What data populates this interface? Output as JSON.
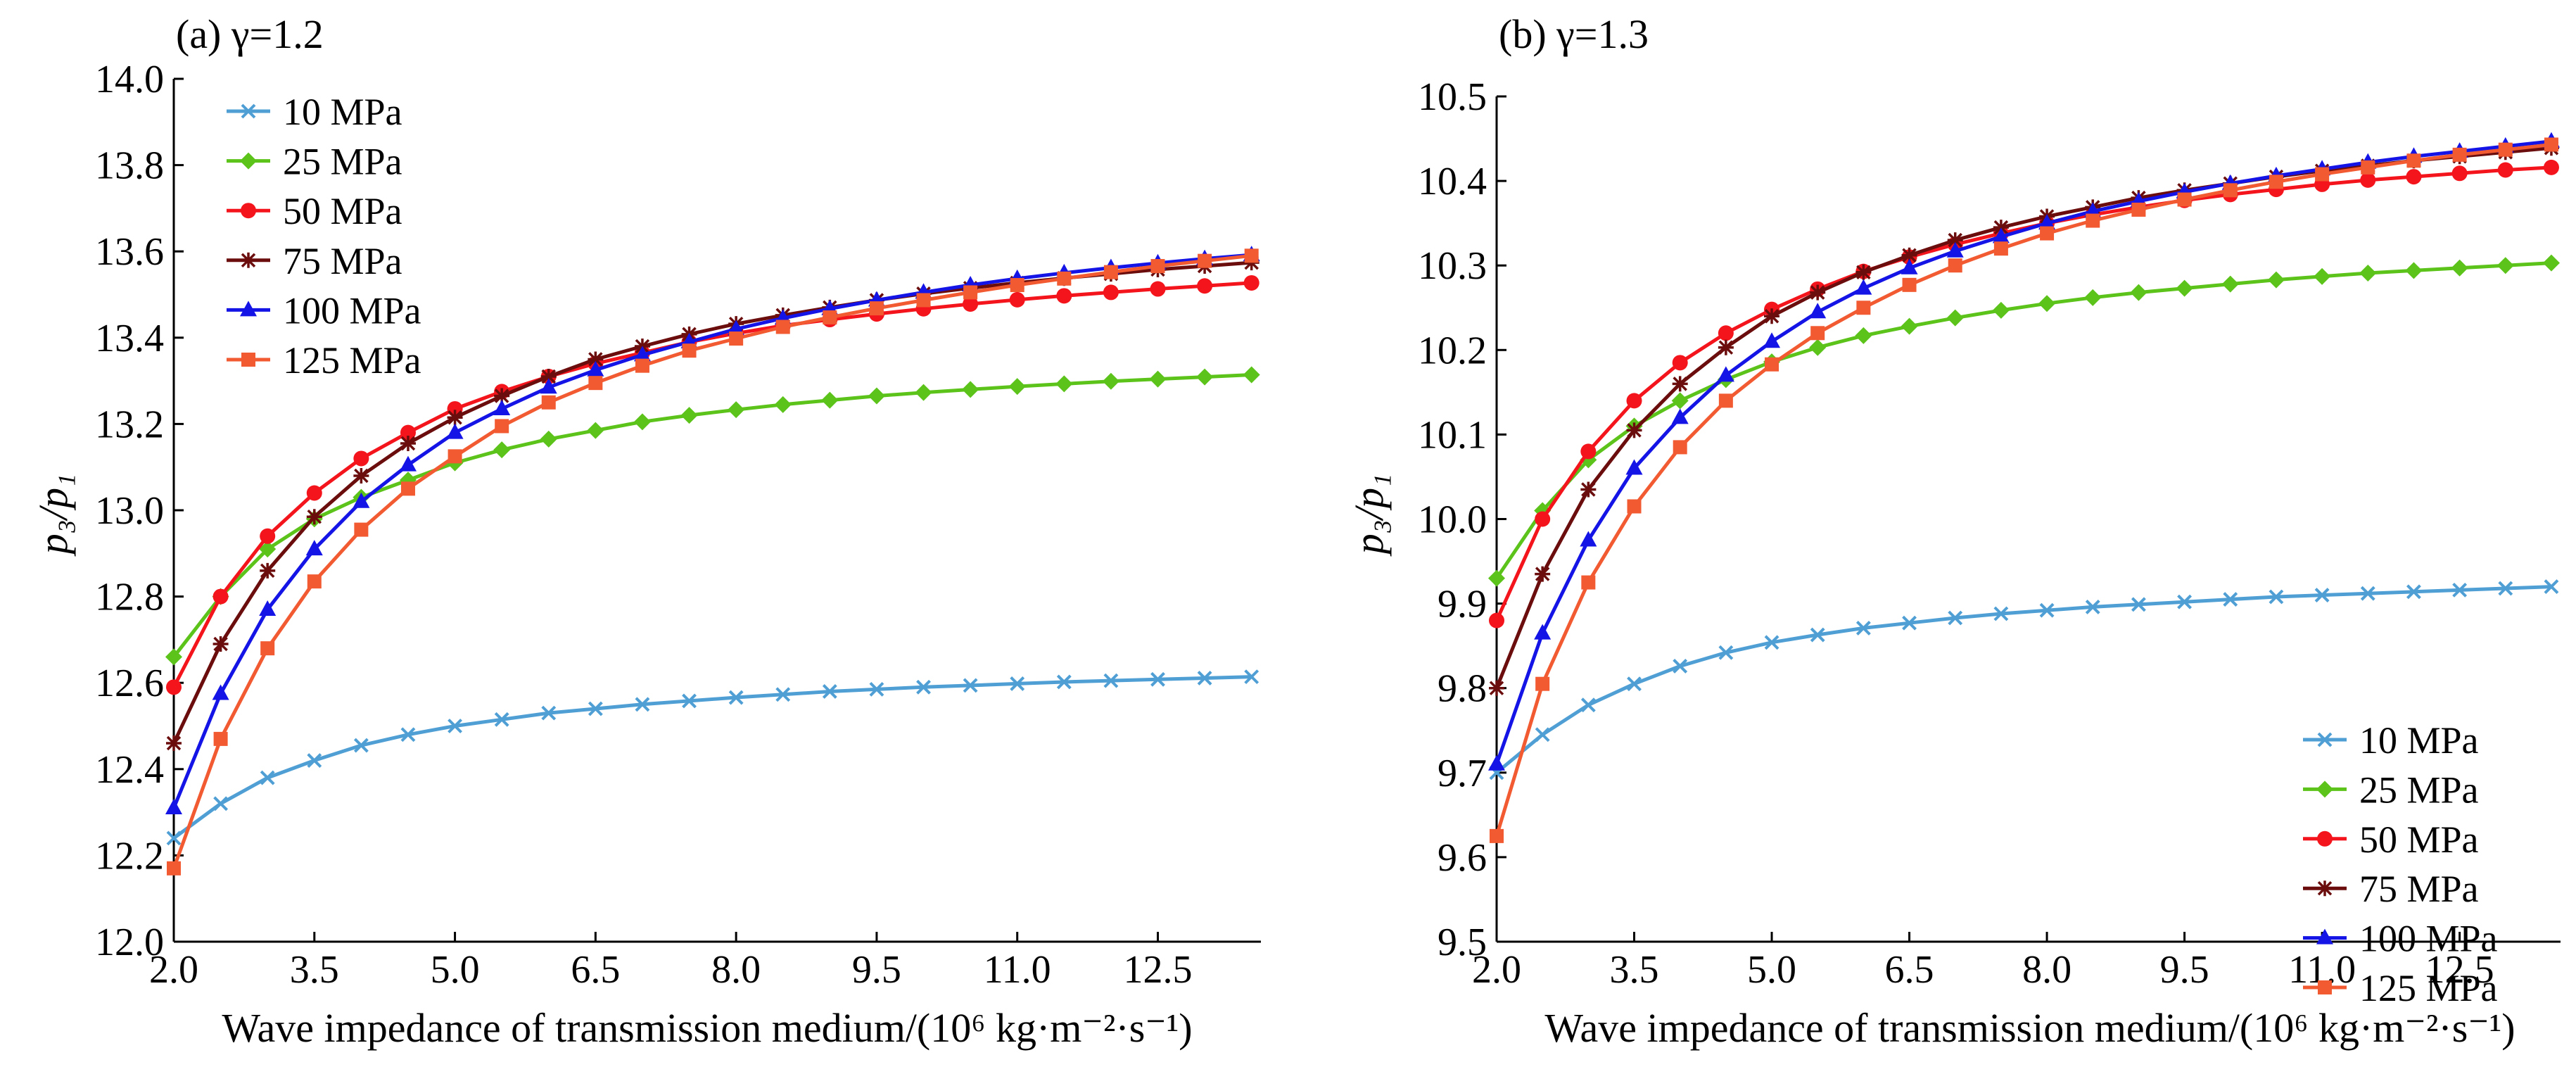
{
  "colors": {
    "10 MPa": "#4f9fd5",
    "25 MPa": "#5cc31a",
    "50 MPa": "#f4141c",
    "75 MPa": "#6b0d0d",
    "100 MPa": "#1414e6",
    "125 MPa": "#f25a32"
  },
  "markers": {
    "10 MPa": "x",
    "25 MPa": "diamond",
    "50 MPa": "circle",
    "75 MPa": "asterisk",
    "100 MPa": "triangle",
    "125 MPa": "square"
  },
  "chart_data": [
    {
      "type": "line",
      "panel_label": "(a) γ=1.2",
      "xlabel": "Wave impedance of transmission medium/(10⁶ kg·m⁻²·s⁻¹)",
      "ylabel": "p₃/p₁",
      "xlim": [
        2.0,
        13.6
      ],
      "ylim": [
        12.0,
        14.0
      ],
      "xticks": [
        2.0,
        3.5,
        5.0,
        6.5,
        8.0,
        9.5,
        11.0,
        12.5
      ],
      "xtick_labels": [
        "2.0",
        "3.5",
        "5.0",
        "6.5",
        "8.0",
        "9.5",
        "11.0",
        "12.5"
      ],
      "yticks": [
        12.0,
        12.2,
        12.4,
        12.6,
        12.8,
        13.0,
        13.2,
        13.4,
        13.6,
        13.8,
        14.0
      ],
      "ytick_labels": [
        "12.0",
        "12.2",
        "12.4",
        "12.6",
        "12.8",
        "13.0",
        "13.2",
        "13.4",
        "13.6",
        "13.8",
        "14.0"
      ],
      "legend_position": "top-left",
      "x": [
        2.0,
        2.5,
        3.0,
        3.5,
        4.0,
        4.5,
        5.0,
        5.5,
        6.0,
        6.5,
        7.0,
        7.5,
        8.0,
        8.5,
        9.0,
        9.5,
        10.0,
        10.5,
        11.0,
        11.5,
        12.0,
        12.5,
        13.0,
        13.5
      ],
      "series": [
        {
          "name": "10 MPa",
          "values": [
            12.24,
            12.32,
            12.38,
            12.42,
            12.455,
            12.48,
            12.5,
            12.515,
            12.53,
            12.54,
            12.55,
            12.558,
            12.566,
            12.573,
            12.58,
            12.585,
            12.59,
            12.594,
            12.598,
            12.602,
            12.605,
            12.608,
            12.611,
            12.614
          ]
        },
        {
          "name": "25 MPa",
          "values": [
            12.66,
            12.8,
            12.91,
            12.98,
            13.03,
            13.07,
            13.11,
            13.14,
            13.165,
            13.185,
            13.205,
            13.22,
            13.233,
            13.245,
            13.255,
            13.265,
            13.273,
            13.28,
            13.287,
            13.293,
            13.299,
            13.304,
            13.309,
            13.314
          ]
        },
        {
          "name": "50 MPa",
          "values": [
            12.59,
            12.8,
            12.94,
            13.04,
            13.12,
            13.18,
            13.235,
            13.275,
            13.31,
            13.34,
            13.365,
            13.39,
            13.41,
            13.428,
            13.442,
            13.455,
            13.467,
            13.478,
            13.488,
            13.497,
            13.505,
            13.513,
            13.52,
            13.527
          ]
        },
        {
          "name": "75 MPa",
          "values": [
            12.46,
            12.69,
            12.86,
            12.985,
            13.08,
            13.155,
            13.215,
            13.265,
            13.31,
            13.35,
            13.38,
            13.408,
            13.432,
            13.452,
            13.47,
            13.487,
            13.502,
            13.515,
            13.527,
            13.538,
            13.548,
            13.558,
            13.566,
            13.574
          ]
        },
        {
          "name": "100 MPa",
          "values": [
            12.31,
            12.575,
            12.77,
            12.91,
            13.02,
            13.105,
            13.18,
            13.235,
            13.285,
            13.325,
            13.36,
            13.39,
            13.42,
            13.445,
            13.467,
            13.487,
            13.505,
            13.522,
            13.537,
            13.55,
            13.562,
            13.573,
            13.583,
            13.592
          ]
        },
        {
          "name": "125 MPa",
          "values": [
            12.17,
            12.47,
            12.68,
            12.835,
            12.955,
            13.05,
            13.125,
            13.195,
            13.25,
            13.295,
            13.335,
            13.37,
            13.398,
            13.425,
            13.447,
            13.468,
            13.487,
            13.505,
            13.522,
            13.537,
            13.552,
            13.566,
            13.578,
            13.59
          ]
        }
      ]
    },
    {
      "type": "line",
      "panel_label": "(b) γ=1.3",
      "xlabel": "Wave impedance of transmission medium/(10⁶ kg·m⁻²·s⁻¹)",
      "ylabel": "p₃/p₁",
      "xlim": [
        2.0,
        13.6
      ],
      "ylim": [
        9.5,
        10.5
      ],
      "xticks": [
        2.0,
        3.5,
        5.0,
        6.5,
        8.0,
        9.5,
        11.0,
        12.5
      ],
      "xtick_labels": [
        "2.0",
        "3.5",
        "5.0",
        "6.5",
        "8.0",
        "9.5",
        "11.0",
        "12.5"
      ],
      "yticks": [
        9.5,
        9.6,
        9.7,
        9.8,
        9.9,
        10.0,
        10.1,
        10.2,
        10.3,
        10.4,
        10.5
      ],
      "ytick_labels": [
        "9.5",
        "9.6",
        "9.7",
        "9.8",
        "9.9",
        "10.0",
        "10.1",
        "10.2",
        "10.3",
        "10.4",
        "10.5"
      ],
      "legend_position": "bottom-right",
      "x": [
        2.0,
        2.5,
        3.0,
        3.5,
        4.0,
        4.5,
        5.0,
        5.5,
        6.0,
        6.5,
        7.0,
        7.5,
        8.0,
        8.5,
        9.0,
        9.5,
        10.0,
        10.5,
        11.0,
        11.5,
        12.0,
        12.5,
        13.0,
        13.5
      ],
      "series": [
        {
          "name": "10 MPa",
          "values": [
            9.7,
            9.745,
            9.78,
            9.805,
            9.826,
            9.842,
            9.854,
            9.863,
            9.871,
            9.877,
            9.883,
            9.888,
            9.892,
            9.896,
            9.899,
            9.902,
            9.905,
            9.908,
            9.91,
            9.912,
            9.914,
            9.916,
            9.918,
            9.92
          ]
        },
        {
          "name": "25 MPa",
          "values": [
            9.93,
            10.01,
            10.07,
            10.11,
            10.14,
            10.165,
            10.186,
            10.203,
            10.217,
            10.228,
            10.238,
            10.247,
            10.255,
            10.262,
            10.268,
            10.273,
            10.278,
            10.283,
            10.287,
            10.291,
            10.294,
            10.297,
            10.3,
            10.303
          ]
        },
        {
          "name": "50 MPa",
          "values": [
            9.88,
            10.0,
            10.08,
            10.14,
            10.185,
            10.22,
            10.248,
            10.272,
            10.293,
            10.31,
            10.325,
            10.338,
            10.35,
            10.36,
            10.369,
            10.377,
            10.384,
            10.39,
            10.396,
            10.401,
            10.405,
            10.409,
            10.413,
            10.416
          ]
        },
        {
          "name": "75 MPa",
          "values": [
            9.8,
            9.935,
            10.035,
            10.105,
            10.16,
            10.203,
            10.24,
            10.268,
            10.292,
            10.312,
            10.33,
            10.345,
            10.358,
            10.369,
            10.38,
            10.389,
            10.397,
            10.405,
            10.412,
            10.418,
            10.424,
            10.429,
            10.434,
            10.439
          ]
        },
        {
          "name": "100 MPa",
          "values": [
            9.71,
            9.865,
            9.975,
            10.06,
            10.12,
            10.17,
            10.21,
            10.245,
            10.273,
            10.297,
            10.317,
            10.334,
            10.35,
            10.364,
            10.376,
            10.387,
            10.397,
            10.406,
            10.414,
            10.422,
            10.429,
            10.435,
            10.441,
            10.447
          ]
        },
        {
          "name": "125 MPa",
          "values": [
            9.625,
            9.805,
            9.925,
            10.015,
            10.085,
            10.14,
            10.183,
            10.22,
            10.25,
            10.277,
            10.3,
            10.32,
            10.338,
            10.353,
            10.366,
            10.378,
            10.389,
            10.399,
            10.408,
            10.416,
            10.424,
            10.431,
            10.437,
            10.443
          ]
        }
      ]
    }
  ]
}
